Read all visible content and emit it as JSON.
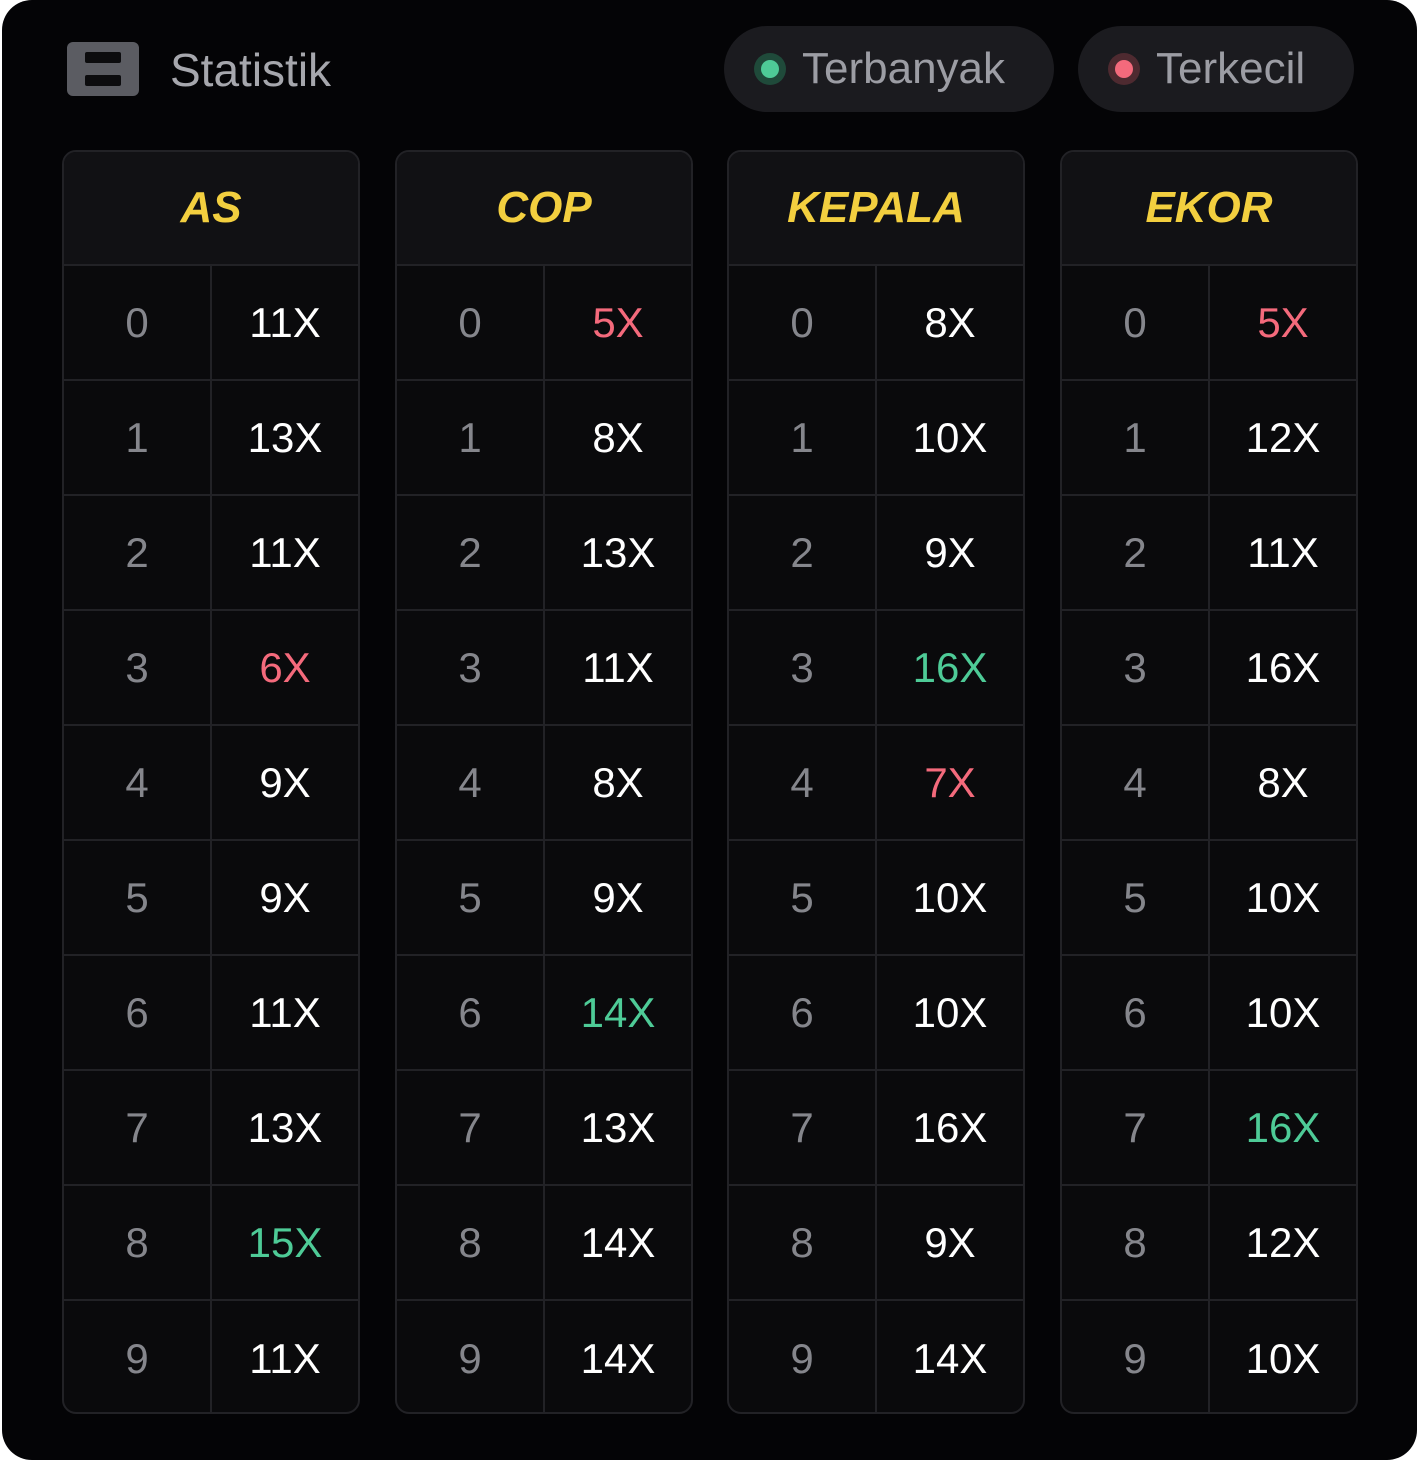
{
  "header": {
    "title": "Statistik",
    "icon": "table-icon"
  },
  "legend": [
    {
      "label": "Terbanyak",
      "color": "#4ecb97"
    },
    {
      "label": "Terkecil",
      "color": "#f46a7c"
    }
  ],
  "colors": {
    "header_text": "#f3cf3f",
    "max": "#4ecb97",
    "min": "#f46a7c",
    "normal": "#ffffff"
  },
  "columns": [
    {
      "title": "AS",
      "rows": [
        {
          "digit": "0",
          "value": "11X",
          "status": "normal"
        },
        {
          "digit": "1",
          "value": "13X",
          "status": "normal"
        },
        {
          "digit": "2",
          "value": "11X",
          "status": "normal"
        },
        {
          "digit": "3",
          "value": "6X",
          "status": "min"
        },
        {
          "digit": "4",
          "value": "9X",
          "status": "normal"
        },
        {
          "digit": "5",
          "value": "9X",
          "status": "normal"
        },
        {
          "digit": "6",
          "value": "11X",
          "status": "normal"
        },
        {
          "digit": "7",
          "value": "13X",
          "status": "normal"
        },
        {
          "digit": "8",
          "value": "15X",
          "status": "max"
        },
        {
          "digit": "9",
          "value": "11X",
          "status": "normal"
        }
      ]
    },
    {
      "title": "COP",
      "rows": [
        {
          "digit": "0",
          "value": "5X",
          "status": "min"
        },
        {
          "digit": "1",
          "value": "8X",
          "status": "normal"
        },
        {
          "digit": "2",
          "value": "13X",
          "status": "normal"
        },
        {
          "digit": "3",
          "value": "11X",
          "status": "normal"
        },
        {
          "digit": "4",
          "value": "8X",
          "status": "normal"
        },
        {
          "digit": "5",
          "value": "9X",
          "status": "normal"
        },
        {
          "digit": "6",
          "value": "14X",
          "status": "max"
        },
        {
          "digit": "7",
          "value": "13X",
          "status": "normal"
        },
        {
          "digit": "8",
          "value": "14X",
          "status": "normal"
        },
        {
          "digit": "9",
          "value": "14X",
          "status": "normal"
        }
      ]
    },
    {
      "title": "KEPALA",
      "rows": [
        {
          "digit": "0",
          "value": "8X",
          "status": "normal"
        },
        {
          "digit": "1",
          "value": "10X",
          "status": "normal"
        },
        {
          "digit": "2",
          "value": "9X",
          "status": "normal"
        },
        {
          "digit": "3",
          "value": "16X",
          "status": "max"
        },
        {
          "digit": "4",
          "value": "7X",
          "status": "min"
        },
        {
          "digit": "5",
          "value": "10X",
          "status": "normal"
        },
        {
          "digit": "6",
          "value": "10X",
          "status": "normal"
        },
        {
          "digit": "7",
          "value": "16X",
          "status": "normal"
        },
        {
          "digit": "8",
          "value": "9X",
          "status": "normal"
        },
        {
          "digit": "9",
          "value": "14X",
          "status": "normal"
        }
      ]
    },
    {
      "title": "EKOR",
      "rows": [
        {
          "digit": "0",
          "value": "5X",
          "status": "min"
        },
        {
          "digit": "1",
          "value": "12X",
          "status": "normal"
        },
        {
          "digit": "2",
          "value": "11X",
          "status": "normal"
        },
        {
          "digit": "3",
          "value": "16X",
          "status": "normal"
        },
        {
          "digit": "4",
          "value": "8X",
          "status": "normal"
        },
        {
          "digit": "5",
          "value": "10X",
          "status": "normal"
        },
        {
          "digit": "6",
          "value": "10X",
          "status": "normal"
        },
        {
          "digit": "7",
          "value": "16X",
          "status": "max"
        },
        {
          "digit": "8",
          "value": "12X",
          "status": "normal"
        },
        {
          "digit": "9",
          "value": "10X",
          "status": "normal"
        }
      ]
    }
  ]
}
